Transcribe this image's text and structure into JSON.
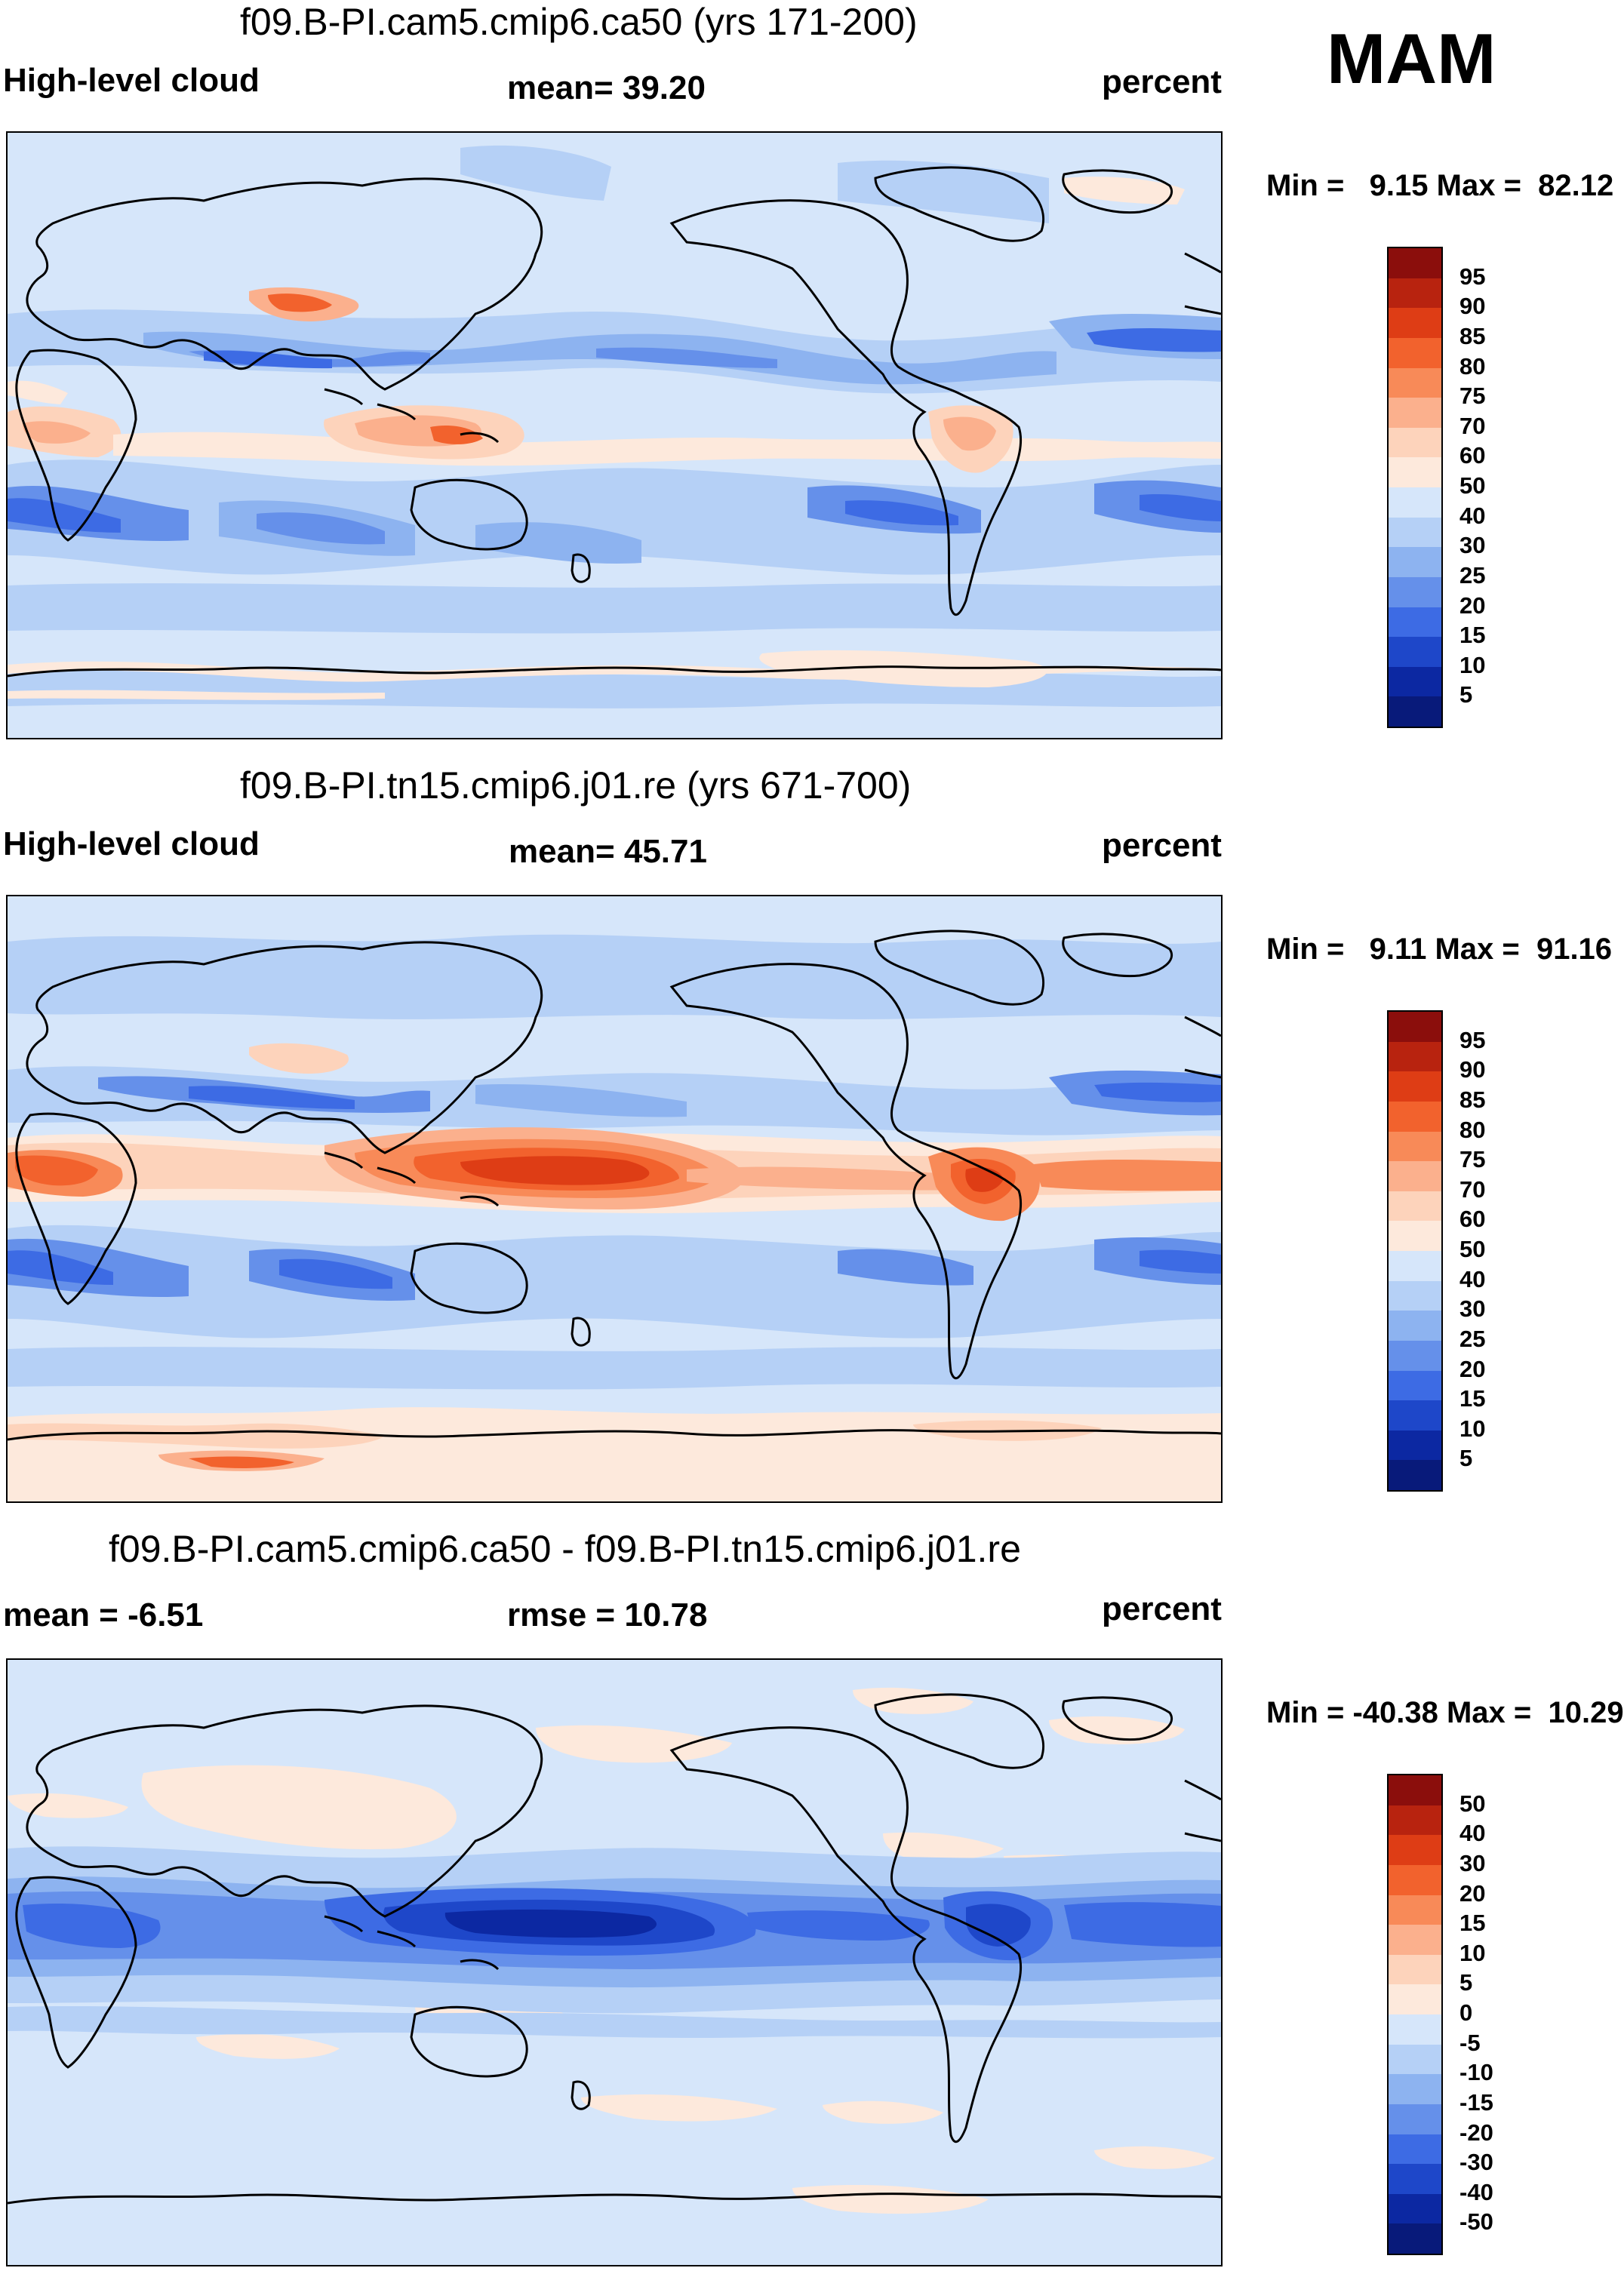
{
  "season": "MAM",
  "panels": [
    {
      "title": "f09.B-PI.cam5.cmip6.ca50 (yrs 171-200)",
      "left_label": "High-level cloud",
      "center_label": "mean=  39.20",
      "right_label": "percent",
      "minmax": "Min =   9.15 Max =  82.12",
      "colorbar": {
        "labels": [
          "95",
          "90",
          "85",
          "80",
          "75",
          "70",
          "60",
          "50",
          "40",
          "30",
          "25",
          "20",
          "15",
          "10",
          "5"
        ],
        "colors": [
          "#8b0e0c",
          "#b8230f",
          "#de3d15",
          "#f2622d",
          "#f88a58",
          "#fbb08d",
          "#fdd3bb",
          "#fde9dc",
          "#d6e6fa",
          "#b5d0f6",
          "#8db3f0",
          "#6590ea",
          "#3d6be4",
          "#1e47c9",
          "#0c28a2",
          "#081a7a"
        ]
      }
    },
    {
      "title": "f09.B-PI.tn15.cmip6.j01.re (yrs 671-700)",
      "left_label": "High-level cloud",
      "center_label": "mean=  45.71",
      "right_label": "percent",
      "minmax": "Min =   9.11 Max =  91.16",
      "colorbar": {
        "labels": [
          "95",
          "90",
          "85",
          "80",
          "75",
          "70",
          "60",
          "50",
          "40",
          "30",
          "25",
          "20",
          "15",
          "10",
          "5"
        ],
        "colors": [
          "#8b0e0c",
          "#b8230f",
          "#de3d15",
          "#f2622d",
          "#f88a58",
          "#fbb08d",
          "#fdd3bb",
          "#fde9dc",
          "#d6e6fa",
          "#b5d0f6",
          "#8db3f0",
          "#6590ea",
          "#3d6be4",
          "#1e47c9",
          "#0c28a2",
          "#081a7a"
        ]
      }
    },
    {
      "title": "f09.B-PI.cam5.cmip6.ca50 - f09.B-PI.tn15.cmip6.j01.re",
      "left_label": "mean =  -6.51",
      "center_label": "rmse =  10.78",
      "right_label": "percent",
      "minmax": "Min = -40.38 Max =  10.29",
      "colorbar": {
        "labels": [
          "50",
          "40",
          "30",
          "20",
          "15",
          "10",
          "5",
          "0",
          "-5",
          "-10",
          "-15",
          "-20",
          "-30",
          "-40",
          "-50"
        ],
        "colors": [
          "#8b0e0c",
          "#b8230f",
          "#de3d15",
          "#f2622d",
          "#f88a58",
          "#fbb08d",
          "#fdd3bb",
          "#fde9dc",
          "#d6e6fa",
          "#b5d0f6",
          "#8db3f0",
          "#6590ea",
          "#3d6be4",
          "#1e47c9",
          "#0c28a2",
          "#081a7a"
        ]
      }
    }
  ]
}
